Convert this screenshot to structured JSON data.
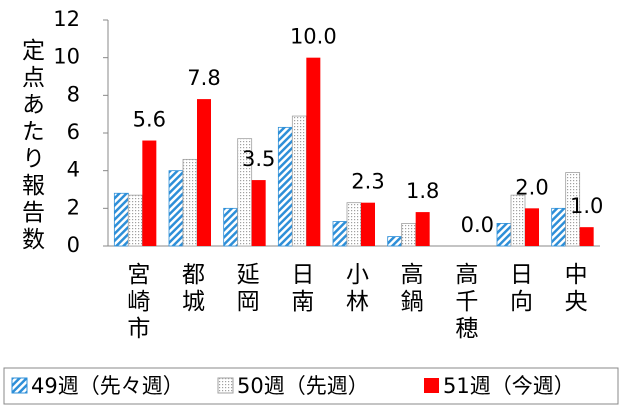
{
  "chart_data": {
    "type": "bar",
    "y_label": "定点あたり報告数",
    "categories": [
      "宮崎市",
      "都城",
      "延岡",
      "日南",
      "小林",
      "高鍋",
      "高千穂",
      "日向",
      "中央"
    ],
    "series": [
      {
        "name": "49週（先々週）",
        "color": "#2e8fd8",
        "values": [
          2.8,
          4.0,
          2.0,
          6.3,
          1.3,
          0.5,
          0,
          1.2,
          2.0
        ]
      },
      {
        "name": "50週（先週）",
        "color": "#a0a0a0",
        "values": [
          2.7,
          4.6,
          5.7,
          6.9,
          2.3,
          1.2,
          0,
          2.7,
          3.9
        ]
      },
      {
        "name": "51週（今週）",
        "color": "#ff0000",
        "values": [
          5.6,
          7.8,
          3.5,
          10,
          2.3,
          1.8,
          0,
          2.0,
          1.0
        ],
        "value_labels": [
          "5.6",
          "7.8",
          "3.5",
          "10.0",
          "2.3",
          "1.8",
          "0.0",
          "2.0",
          "1.0"
        ]
      }
    ],
    "ylim": [
      0,
      12
    ],
    "yticks": [
      0,
      2,
      4,
      6,
      8,
      10,
      12
    ],
    "grid": false
  }
}
